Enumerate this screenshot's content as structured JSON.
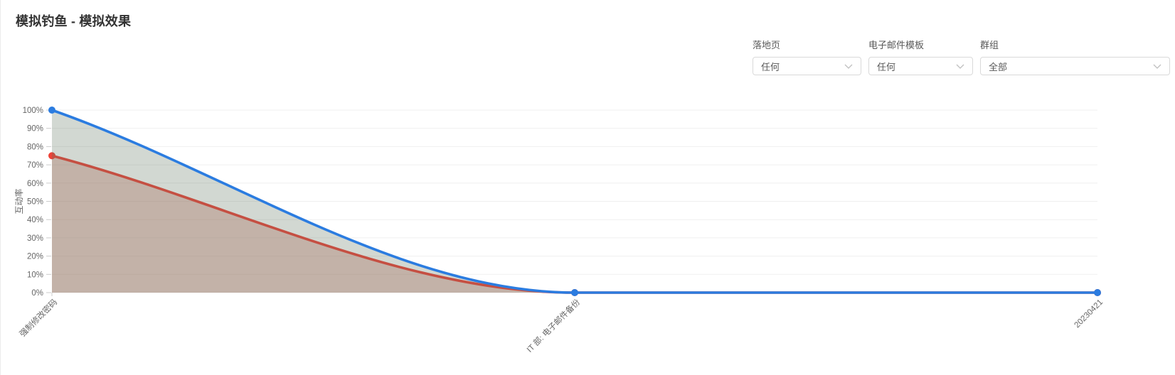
{
  "page": {
    "title": "模拟钓鱼 - 模拟效果"
  },
  "filters": [
    {
      "id": "landing-page",
      "label": "落地页",
      "value": "任何"
    },
    {
      "id": "email-template",
      "label": "电子邮件模板",
      "value": "任何"
    },
    {
      "id": "group",
      "label": "群组",
      "value": "全部"
    }
  ],
  "chart_data": {
    "type": "area",
    "title": "",
    "xlabel": "",
    "ylabel": "互动率",
    "ylim": [
      0,
      100
    ],
    "grid": true,
    "legend": "none",
    "x_label_rotation": 45,
    "categories": [
      "强制修改密码",
      "IT 部: 电子邮件备份",
      "20230421"
    ],
    "y_ticks": [
      "0%",
      "10%",
      "20%",
      "30%",
      "40%",
      "50%",
      "60%",
      "70%",
      "80%",
      "90%",
      "100%"
    ],
    "series": [
      {
        "name": "series-blue",
        "color": "#2b7ce0",
        "area_fill": "rgba(95,115,95,0.28)",
        "values": [
          100,
          0,
          0
        ]
      },
      {
        "name": "series-red",
        "color": "#ee4238",
        "area_fill": "rgba(205,125,110,0.40)",
        "values": [
          75,
          0,
          0
        ]
      }
    ],
    "colors": {
      "grid": "#efefef",
      "tick": "#cccccc",
      "axis_text": "#666666"
    }
  }
}
